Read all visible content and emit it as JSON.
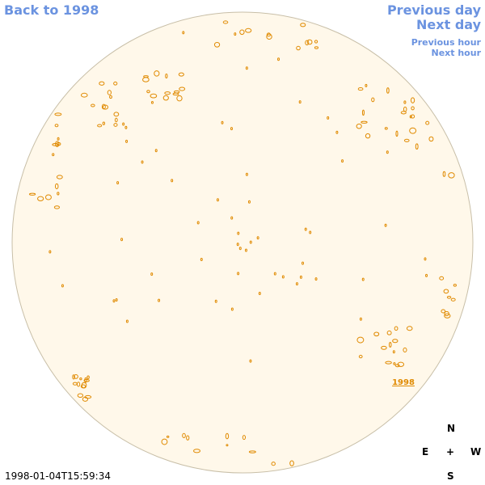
{
  "nav": {
    "back": "Back to 1998",
    "previous_day": "Previous day",
    "next_day": "Next day",
    "previous_hour": "Previous hour",
    "next_hour": "Next hour"
  },
  "disk_label": "1998",
  "timestamp": "1998-01-04T15:59:34",
  "compass": {
    "north": "N",
    "east": "E",
    "center": "+",
    "west": "W",
    "south": "S"
  }
}
